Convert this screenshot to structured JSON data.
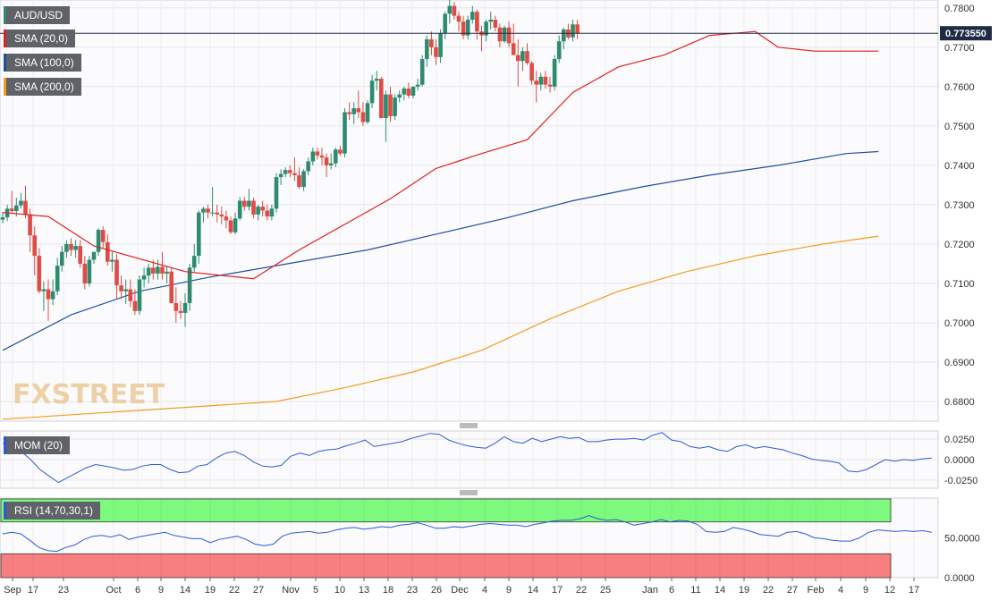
{
  "colors": {
    "bull": "#2e8b6f",
    "bear": "#e04b45",
    "sma20": "#e02020",
    "sma100": "#1f4fa0",
    "sma200": "#f39c1a",
    "mom": "#2a5bd7",
    "rsi": "#2a5bd7",
    "rsi_over": "#7dfa7d",
    "rsi_under": "#f87f7f",
    "price_tag": "#1f2a44"
  },
  "legend": {
    "symbol": "AUD/USD",
    "sma20": "SMA (20,0)",
    "sma100": "SMA (100,0)",
    "sma200": "SMA (200,0)",
    "mom": "MOM (20)",
    "rsi": "RSI (14,70,30,1)"
  },
  "watermark": "FXSTREET",
  "last_price_label": "0.773550",
  "chart_data": [
    {
      "type": "candlestick",
      "title": "AUD/USD",
      "ylim": [
        0.675,
        0.782
      ],
      "y_ticks": [
        "0.6800",
        "0.6900",
        "0.7000",
        "0.7100",
        "0.7200",
        "0.7300",
        "0.7400",
        "0.7500",
        "0.7600",
        "0.7700",
        "0.7800"
      ],
      "x_ticks": [
        "Sep",
        "17",
        "23",
        "Oct",
        "6",
        "9",
        "14",
        "19",
        "22",
        "27",
        "Nov",
        "5",
        "10",
        "13",
        "18",
        "23",
        "26",
        "Dec",
        "4",
        "9",
        "14",
        "17",
        "22",
        "25",
        "Jan",
        "6",
        "11",
        "14",
        "19",
        "22",
        "27",
        "Feb",
        "4",
        "9",
        "12",
        "17"
      ],
      "last_price": 0.77355,
      "candles": [
        [
          0.7262,
          0.7282,
          0.7252,
          0.7268
        ],
        [
          0.7268,
          0.73,
          0.7258,
          0.729
        ],
        [
          0.729,
          0.7335,
          0.728,
          0.7284
        ],
        [
          0.7284,
          0.7318,
          0.727,
          0.7298
        ],
        [
          0.7298,
          0.733,
          0.729,
          0.731
        ],
        [
          0.731,
          0.7348,
          0.7265,
          0.7275
        ],
        [
          0.7275,
          0.729,
          0.718,
          0.7222
        ],
        [
          0.7222,
          0.7245,
          0.712,
          0.717
        ],
        [
          0.717,
          0.719,
          0.7075,
          0.708
        ],
        [
          0.708,
          0.7105,
          0.703,
          0.7085
        ],
        [
          0.7085,
          0.711,
          0.7005,
          0.706
        ],
        [
          0.706,
          0.711,
          0.7045,
          0.708
        ],
        [
          0.708,
          0.7165,
          0.707,
          0.7145
        ],
        [
          0.7145,
          0.7195,
          0.713,
          0.718
        ],
        [
          0.718,
          0.721,
          0.7165,
          0.72
        ],
        [
          0.72,
          0.7215,
          0.717,
          0.7185
        ],
        [
          0.7185,
          0.721,
          0.7165,
          0.7195
        ],
        [
          0.7195,
          0.721,
          0.714,
          0.715
        ],
        [
          0.715,
          0.717,
          0.7085,
          0.71
        ],
        [
          0.71,
          0.717,
          0.7092,
          0.716
        ],
        [
          0.716,
          0.718,
          0.715,
          0.718
        ],
        [
          0.718,
          0.724,
          0.717,
          0.7236
        ],
        [
          0.7236,
          0.7245,
          0.719,
          0.7205
        ],
        [
          0.7205,
          0.7225,
          0.7145,
          0.7155
        ],
        [
          0.7155,
          0.718,
          0.713,
          0.716
        ],
        [
          0.716,
          0.7175,
          0.706,
          0.7095
        ],
        [
          0.7095,
          0.712,
          0.706,
          0.708
        ],
        [
          0.708,
          0.711,
          0.7048,
          0.7085
        ],
        [
          0.7085,
          0.711,
          0.704,
          0.7055
        ],
        [
          0.7055,
          0.7085,
          0.702,
          0.703
        ],
        [
          0.703,
          0.712,
          0.702,
          0.711
        ],
        [
          0.711,
          0.714,
          0.709,
          0.712
        ],
        [
          0.712,
          0.715,
          0.71,
          0.714
        ],
        [
          0.714,
          0.716,
          0.711,
          0.7125
        ],
        [
          0.7125,
          0.716,
          0.711,
          0.7142
        ],
        [
          0.7142,
          0.718,
          0.711,
          0.7125
        ],
        [
          0.7125,
          0.7145,
          0.71,
          0.713
        ],
        [
          0.713,
          0.714,
          0.705,
          0.705
        ],
        [
          0.705,
          0.709,
          0.7,
          0.703
        ],
        [
          0.703,
          0.7055,
          0.701,
          0.7025
        ],
        [
          0.7025,
          0.7075,
          0.699,
          0.705
        ],
        [
          0.705,
          0.715,
          0.703,
          0.714
        ],
        [
          0.714,
          0.72,
          0.713,
          0.717
        ],
        [
          0.717,
          0.7285,
          0.715,
          0.728
        ],
        [
          0.728,
          0.7295,
          0.7255,
          0.729
        ],
        [
          0.729,
          0.73,
          0.7265,
          0.728
        ],
        [
          0.728,
          0.7345,
          0.727,
          0.728
        ],
        [
          0.728,
          0.73,
          0.7255,
          0.7275
        ],
        [
          0.7275,
          0.7295,
          0.725,
          0.727
        ],
        [
          0.727,
          0.7285,
          0.724,
          0.726
        ],
        [
          0.726,
          0.727,
          0.7225,
          0.723
        ],
        [
          0.723,
          0.728,
          0.7225,
          0.7265
        ],
        [
          0.7265,
          0.732,
          0.726,
          0.731
        ],
        [
          0.731,
          0.732,
          0.7285,
          0.7295
        ],
        [
          0.7295,
          0.734,
          0.7285,
          0.731
        ],
        [
          0.731,
          0.7318,
          0.7265,
          0.7275
        ],
        [
          0.7275,
          0.73,
          0.726,
          0.7295
        ],
        [
          0.7295,
          0.731,
          0.727,
          0.7285
        ],
        [
          0.7285,
          0.73,
          0.726,
          0.727
        ],
        [
          0.727,
          0.73,
          0.726,
          0.729
        ],
        [
          0.729,
          0.738,
          0.728,
          0.737
        ],
        [
          0.737,
          0.739,
          0.735,
          0.7378
        ],
        [
          0.7378,
          0.7395,
          0.737,
          0.7388
        ],
        [
          0.7388,
          0.74,
          0.737,
          0.738
        ],
        [
          0.738,
          0.742,
          0.736,
          0.7375
        ],
        [
          0.7375,
          0.7395,
          0.734,
          0.7345
        ],
        [
          0.7345,
          0.739,
          0.7335,
          0.7385
        ],
        [
          0.7385,
          0.742,
          0.7375,
          0.741
        ],
        [
          0.741,
          0.7445,
          0.74,
          0.7435
        ],
        [
          0.7435,
          0.7445,
          0.7415,
          0.7425
        ],
        [
          0.7425,
          0.7445,
          0.74,
          0.742
        ],
        [
          0.742,
          0.743,
          0.737,
          0.74
        ],
        [
          0.74,
          0.743,
          0.739,
          0.7405
        ],
        [
          0.7405,
          0.7445,
          0.7395,
          0.744
        ],
        [
          0.744,
          0.745,
          0.7425,
          0.743
        ],
        [
          0.743,
          0.7545,
          0.742,
          0.7535
        ],
        [
          0.7535,
          0.756,
          0.7515,
          0.753
        ],
        [
          0.753,
          0.756,
          0.7505,
          0.7545
        ],
        [
          0.7545,
          0.759,
          0.752,
          0.7535
        ],
        [
          0.7535,
          0.756,
          0.75,
          0.751
        ],
        [
          0.751,
          0.7565,
          0.7505,
          0.7558
        ],
        [
          0.7558,
          0.763,
          0.7545,
          0.7615
        ],
        [
          0.7615,
          0.764,
          0.759,
          0.762
        ],
        [
          0.762,
          0.7625,
          0.752,
          0.752
        ],
        [
          0.752,
          0.759,
          0.746,
          0.758
        ],
        [
          0.758,
          0.76,
          0.751,
          0.7525
        ],
        [
          0.7525,
          0.758,
          0.7515,
          0.7572
        ],
        [
          0.7572,
          0.759,
          0.756,
          0.758
        ],
        [
          0.758,
          0.76,
          0.7565,
          0.7595
        ],
        [
          0.7595,
          0.761,
          0.757,
          0.7577
        ],
        [
          0.7577,
          0.76,
          0.757,
          0.76
        ],
        [
          0.76,
          0.762,
          0.759,
          0.7605
        ],
        [
          0.7605,
          0.768,
          0.76,
          0.767
        ],
        [
          0.767,
          0.773,
          0.765,
          0.772
        ],
        [
          0.772,
          0.774,
          0.768,
          0.77
        ],
        [
          0.77,
          0.772,
          0.7655,
          0.7675
        ],
        [
          0.7675,
          0.7745,
          0.766,
          0.7735
        ],
        [
          0.7735,
          0.779,
          0.772,
          0.7785
        ],
        [
          0.7785,
          0.782,
          0.776,
          0.7805
        ],
        [
          0.7805,
          0.7815,
          0.777,
          0.778
        ],
        [
          0.778,
          0.779,
          0.774,
          0.7765
        ],
        [
          0.7765,
          0.778,
          0.772,
          0.773
        ],
        [
          0.773,
          0.778,
          0.772,
          0.777
        ],
        [
          0.777,
          0.7805,
          0.776,
          0.779
        ],
        [
          0.779,
          0.7795,
          0.772,
          0.774
        ],
        [
          0.774,
          0.7755,
          0.769,
          0.773
        ],
        [
          0.773,
          0.777,
          0.7715,
          0.7765
        ],
        [
          0.7765,
          0.779,
          0.7745,
          0.777
        ],
        [
          0.777,
          0.778,
          0.774,
          0.775
        ],
        [
          0.775,
          0.776,
          0.77,
          0.7715
        ],
        [
          0.7715,
          0.7755,
          0.771,
          0.775
        ],
        [
          0.775,
          0.7765,
          0.77,
          0.771
        ],
        [
          0.771,
          0.776,
          0.768,
          0.768
        ],
        [
          0.768,
          0.772,
          0.76,
          0.7665
        ],
        [
          0.7665,
          0.77,
          0.764,
          0.769
        ],
        [
          0.769,
          0.771,
          0.7655,
          0.766
        ],
        [
          0.766,
          0.7665,
          0.7605,
          0.7615
        ],
        [
          0.7615,
          0.764,
          0.756,
          0.7605
        ],
        [
          0.7605,
          0.7635,
          0.759,
          0.7625
        ],
        [
          0.7625,
          0.764,
          0.7595,
          0.7605
        ],
        [
          0.7605,
          0.7625,
          0.7585,
          0.76
        ],
        [
          0.76,
          0.768,
          0.759,
          0.767
        ],
        [
          0.767,
          0.773,
          0.766,
          0.7715
        ],
        [
          0.7715,
          0.775,
          0.7695,
          0.7745
        ],
        [
          0.7745,
          0.776,
          0.772,
          0.7725
        ],
        [
          0.7725,
          0.777,
          0.7715,
          0.7758
        ],
        [
          0.7758,
          0.777,
          0.772,
          0.7735
        ]
      ],
      "sma20": [
        [
          0,
          0.728
        ],
        [
          10,
          0.727
        ],
        [
          20,
          0.7195
        ],
        [
          40,
          0.713
        ],
        [
          55,
          0.7112
        ],
        [
          65,
          0.7185
        ],
        [
          75,
          0.725
        ],
        [
          85,
          0.7315
        ],
        [
          95,
          0.7392
        ],
        [
          105,
          0.743
        ],
        [
          115,
          0.7465
        ],
        [
          125,
          0.7585
        ],
        [
          135,
          0.765
        ],
        [
          145,
          0.768
        ],
        [
          155,
          0.773
        ],
        [
          165,
          0.774
        ],
        [
          170,
          0.77
        ],
        [
          178,
          0.769
        ],
        [
          185,
          0.769
        ],
        [
          192,
          0.769
        ]
      ],
      "sma100": [
        [
          0,
          0.693
        ],
        [
          15,
          0.702
        ],
        [
          30,
          0.708
        ],
        [
          45,
          0.7115
        ],
        [
          60,
          0.7145
        ],
        [
          80,
          0.7185
        ],
        [
          95,
          0.7225
        ],
        [
          110,
          0.7265
        ],
        [
          125,
          0.731
        ],
        [
          140,
          0.7345
        ],
        [
          155,
          0.7375
        ],
        [
          170,
          0.74
        ],
        [
          185,
          0.743
        ],
        [
          192,
          0.7435
        ]
      ],
      "sma200": [
        [
          0,
          0.6755
        ],
        [
          20,
          0.677
        ],
        [
          40,
          0.6785
        ],
        [
          60,
          0.68
        ],
        [
          75,
          0.6835
        ],
        [
          90,
          0.6875
        ],
        [
          105,
          0.693
        ],
        [
          120,
          0.701
        ],
        [
          135,
          0.708
        ],
        [
          150,
          0.713
        ],
        [
          165,
          0.717
        ],
        [
          180,
          0.72
        ],
        [
          192,
          0.722
        ]
      ]
    },
    {
      "type": "line",
      "title": "MOM (20)",
      "ylim": [
        -0.035,
        0.035
      ],
      "y_ticks": [
        "0.0250",
        "0.0000",
        "-0.0250"
      ],
      "values": [
        0.02,
        0.015,
        0.01,
        0.0,
        -0.012,
        -0.02,
        -0.028,
        -0.022,
        -0.016,
        -0.01,
        -0.006,
        -0.008,
        -0.01,
        -0.013,
        -0.012,
        -0.008,
        -0.006,
        -0.006,
        -0.012,
        -0.016,
        -0.015,
        -0.008,
        -0.006,
        0.002,
        0.008,
        0.01,
        0.005,
        -0.003,
        -0.008,
        -0.009,
        -0.007,
        0.004,
        0.008,
        0.005,
        0.01,
        0.012,
        0.013,
        0.017,
        0.02,
        0.024,
        0.016,
        0.018,
        0.02,
        0.022,
        0.026,
        0.029,
        0.032,
        0.031,
        0.024,
        0.02,
        0.017,
        0.015,
        0.014,
        0.02,
        0.028,
        0.022,
        0.02,
        0.026,
        0.022,
        0.025,
        0.028,
        0.026,
        0.027,
        0.022,
        0.022,
        0.024,
        0.025,
        0.025,
        0.026,
        0.024,
        0.03,
        0.033,
        0.024,
        0.022,
        0.016,
        0.014,
        0.016,
        0.012,
        0.01,
        0.016,
        0.018,
        0.014,
        0.016,
        0.014,
        0.012,
        0.008,
        0.005,
        0.001,
        -0.001,
        -0.002,
        -0.004,
        -0.014,
        -0.015,
        -0.012,
        -0.006,
        0.0,
        -0.002,
        0.0,
        -0.001,
        0.001,
        0.002
      ]
    },
    {
      "type": "line",
      "title": "RSI (14,70,30,1)",
      "ylim": [
        0,
        100
      ],
      "y_ticks": [
        "50.0000",
        "0.0000"
      ],
      "overbought": 70,
      "oversold": 30,
      "values": [
        55,
        57,
        55,
        47,
        38,
        34,
        33,
        38,
        41,
        48,
        52,
        53,
        51,
        54,
        48,
        51,
        53,
        55,
        57,
        53,
        51,
        49,
        49,
        44,
        48,
        50,
        52,
        48,
        42,
        40,
        42,
        52,
        56,
        57,
        58,
        56,
        57,
        60,
        62,
        63,
        61,
        62,
        64,
        63,
        66,
        67,
        69,
        66,
        62,
        62,
        64,
        63,
        65,
        67,
        68,
        67,
        66,
        66,
        64,
        67,
        69,
        71,
        72,
        72,
        74,
        78,
        74,
        72,
        73,
        70,
        66,
        68,
        70,
        73,
        70,
        72,
        71,
        67,
        58,
        57,
        58,
        63,
        61,
        58,
        54,
        53,
        52,
        57,
        58,
        55,
        50,
        49,
        47,
        46,
        46,
        50,
        57,
        60,
        59,
        58,
        59,
        58,
        59,
        57
      ]
    }
  ]
}
